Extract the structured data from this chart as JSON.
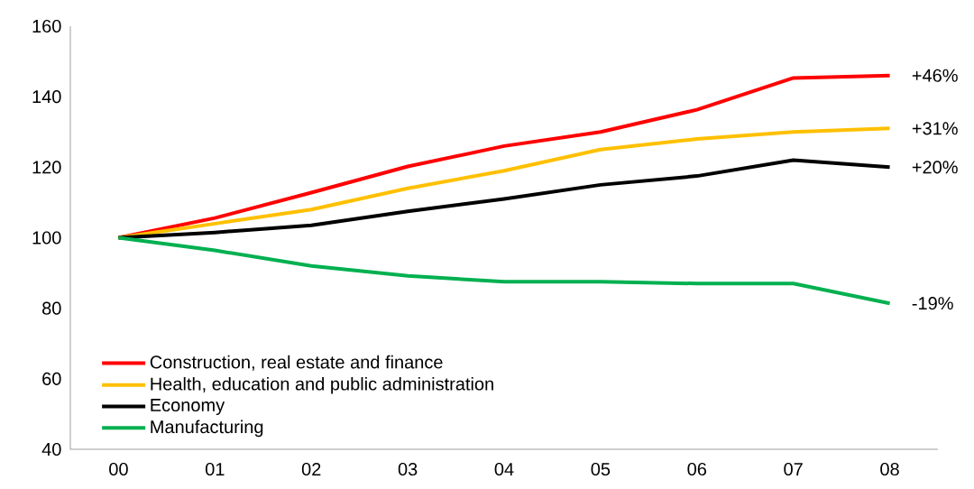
{
  "chart_data": {
    "type": "line",
    "categories": [
      "00",
      "01",
      "02",
      "03",
      "04",
      "05",
      "06",
      "07",
      "08"
    ],
    "series": [
      {
        "name": "Construction, real estate and finance",
        "color": "#ff0000",
        "values": [
          100,
          105.6,
          112.8,
          120.2,
          126,
          130,
          136.3,
          145.3,
          146
        ]
      },
      {
        "name": "Health, education and public administration",
        "color": "#ffc000",
        "values": [
          100,
          104,
          108,
          114,
          119,
          125,
          128,
          130,
          131
        ]
      },
      {
        "name": "Economy",
        "color": "#000000",
        "values": [
          100,
          101.5,
          103.5,
          107.5,
          111,
          115,
          117.5,
          122,
          120
        ]
      },
      {
        "name": "Manufacturing",
        "color": "#00b050",
        "values": [
          100,
          96.4,
          92,
          89.2,
          87.5,
          87.5,
          87,
          87,
          81.4
        ]
      }
    ],
    "ylim": [
      40,
      160
    ],
    "yticks": [
      40,
      60,
      80,
      100,
      120,
      140,
      160
    ],
    "legend": "bottom left",
    "grid": false,
    "marker": "none",
    "line_style": "solid",
    "annotations": [
      {
        "text": "+46%",
        "x": "08",
        "y": 146
      },
      {
        "text": "+31%",
        "x": "08",
        "y": 131
      },
      {
        "text": "+20%",
        "x": "08",
        "y": 120
      },
      {
        "text": "-19%",
        "x": "08",
        "y": 81.4
      }
    ]
  }
}
